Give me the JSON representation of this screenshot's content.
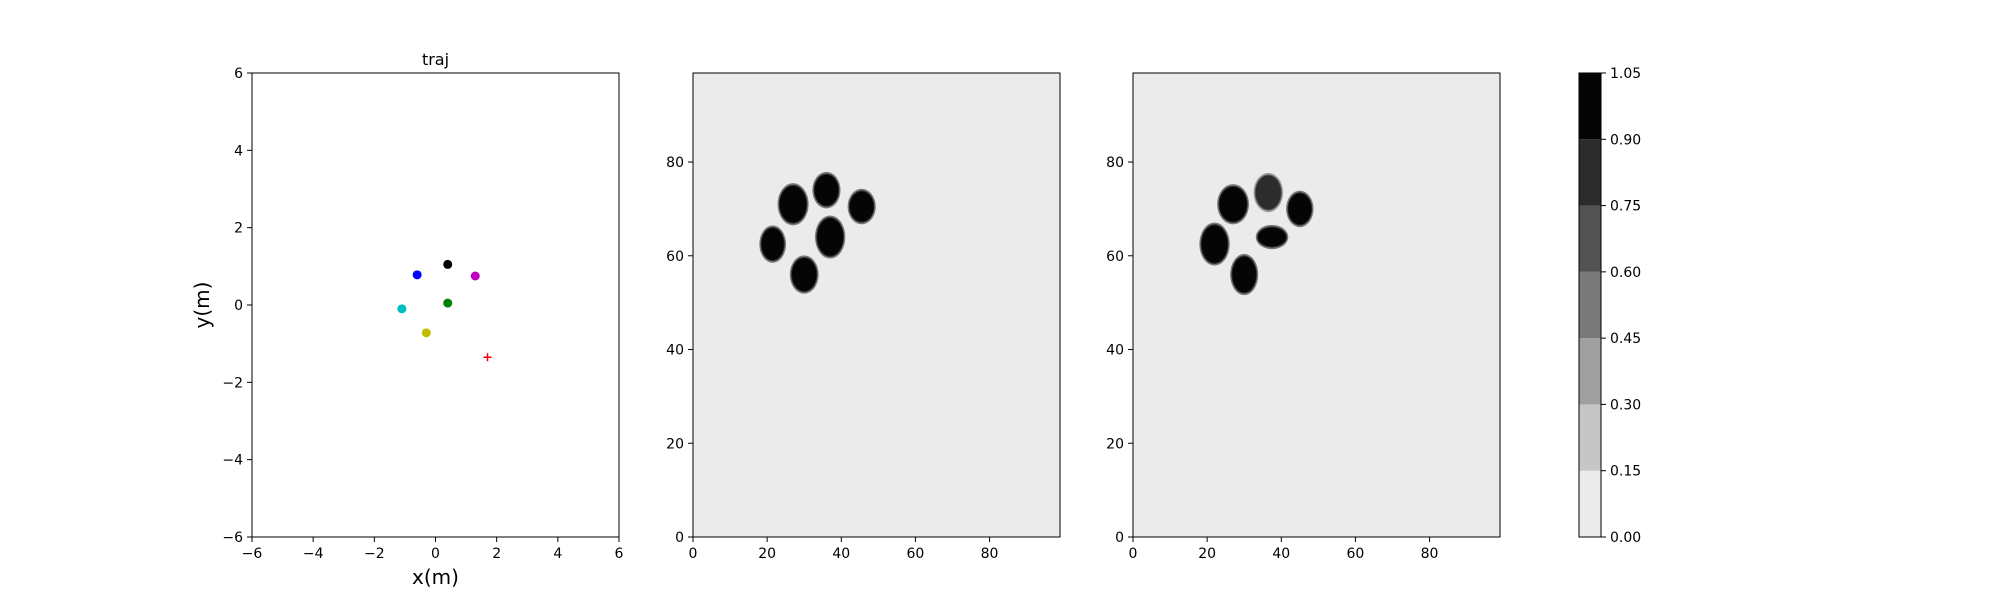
{
  "chart_data": [
    {
      "type": "scatter",
      "title": "traj",
      "xlabel": "x(m)",
      "ylabel": "y(m)",
      "xlim": [
        -6,
        6
      ],
      "ylim": [
        -6,
        6
      ],
      "xticks": [
        -6,
        -4,
        -2,
        0,
        2,
        4,
        6
      ],
      "yticks": [
        -6,
        -4,
        -2,
        0,
        2,
        4,
        6
      ],
      "grid": false,
      "points": [
        {
          "x": 0.4,
          "y": 1.05,
          "color": "#000000",
          "marker": "circle"
        },
        {
          "x": -0.6,
          "y": 0.78,
          "color": "#0000ff",
          "marker": "circle"
        },
        {
          "x": 1.3,
          "y": 0.75,
          "color": "#bf00bf",
          "marker": "circle"
        },
        {
          "x": 0.4,
          "y": 0.05,
          "color": "#008000",
          "marker": "circle"
        },
        {
          "x": -1.1,
          "y": -0.1,
          "color": "#00bfbf",
          "marker": "circle"
        },
        {
          "x": -0.3,
          "y": -0.72,
          "color": "#bfbf00",
          "marker": "circle"
        },
        {
          "x": 1.7,
          "y": -1.35,
          "color": "#ff0000",
          "marker": "plus"
        }
      ]
    },
    {
      "type": "heatmap",
      "title": "",
      "xlim": [
        0,
        99
      ],
      "ylim": [
        0,
        99
      ],
      "xticks": [
        0,
        20,
        40,
        60,
        80
      ],
      "yticks": [
        0,
        20,
        40,
        60,
        80
      ],
      "background_value": 0.05,
      "blobs": [
        {
          "cx": 27,
          "cy": 71,
          "rx": 3.6,
          "ry": 3.9,
          "value": 1.0
        },
        {
          "cx": 36,
          "cy": 74,
          "rx": 3.2,
          "ry": 3.3,
          "value": 1.0
        },
        {
          "cx": 45.5,
          "cy": 70.5,
          "rx": 3.2,
          "ry": 3.2,
          "value": 1.0
        },
        {
          "cx": 37,
          "cy": 64,
          "rx": 3.5,
          "ry": 4.0,
          "value": 1.0
        },
        {
          "cx": 21.5,
          "cy": 62.5,
          "rx": 3.0,
          "ry": 3.4,
          "value": 1.0
        },
        {
          "cx": 30,
          "cy": 56,
          "rx": 3.3,
          "ry": 3.5,
          "value": 1.0
        }
      ]
    },
    {
      "type": "heatmap",
      "title": "",
      "xlim": [
        0,
        99
      ],
      "ylim": [
        0,
        99
      ],
      "xticks": [
        0,
        20,
        40,
        60,
        80
      ],
      "yticks": [
        0,
        20,
        40,
        60,
        80
      ],
      "background_value": 0.05,
      "blobs": [
        {
          "cx": 27,
          "cy": 71,
          "rx": 3.7,
          "ry": 3.7,
          "value": 1.0
        },
        {
          "cx": 36.5,
          "cy": 73.5,
          "rx": 3.4,
          "ry": 3.6,
          "value": 0.85
        },
        {
          "cx": 45,
          "cy": 70,
          "rx": 3.1,
          "ry": 3.3,
          "value": 1.0
        },
        {
          "cx": 37.5,
          "cy": 64,
          "rx": 3.8,
          "ry": 2.0,
          "value": 0.95
        },
        {
          "cx": 22,
          "cy": 62.5,
          "rx": 3.5,
          "ry": 4.0,
          "value": 1.0
        },
        {
          "cx": 30,
          "cy": 56,
          "rx": 3.2,
          "ry": 3.8,
          "value": 1.0
        }
      ]
    }
  ],
  "colorbar": {
    "levels": [
      0.0,
      0.15,
      0.3,
      0.45,
      0.6,
      0.75,
      0.9,
      1.05
    ],
    "tick_labels": [
      "0.00",
      "0.15",
      "0.30",
      "0.45",
      "0.60",
      "0.75",
      "0.90",
      "1.05"
    ],
    "colors": [
      "#ebebeb",
      "#c6c6c6",
      "#a0a0a0",
      "#797979",
      "#535353",
      "#2c2c2c",
      "#050505"
    ]
  }
}
